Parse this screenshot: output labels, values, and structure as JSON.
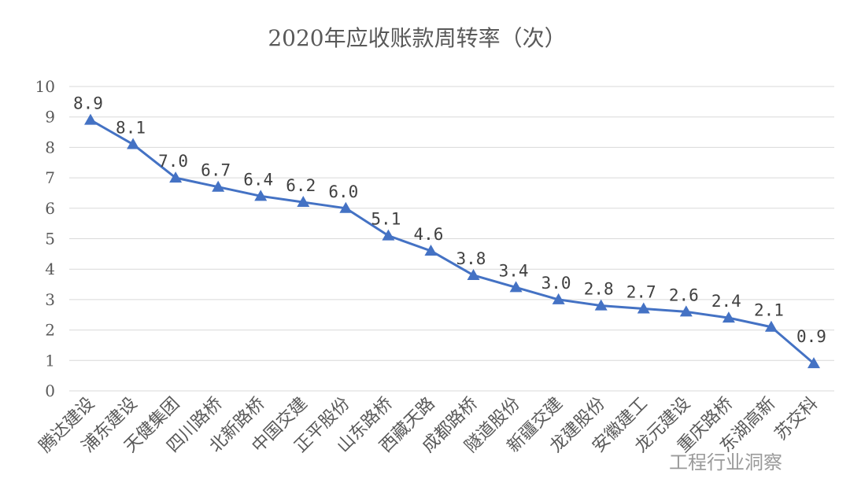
{
  "chart_data": {
    "type": "line",
    "title": "2020年应收账款周转率（次）",
    "categories": [
      "腾达建设",
      "浦东建设",
      "天健集团",
      "四川路桥",
      "北新路桥",
      "中国交建",
      "正平股份",
      "山东路桥",
      "西藏天路",
      "成都路桥",
      "隧道股份",
      "新疆交建",
      "龙建股份",
      "安徽建工",
      "龙元建设",
      "重庆路桥",
      "东湖高新",
      "苏交科"
    ],
    "values": [
      8.9,
      8.1,
      7.0,
      6.7,
      6.4,
      6.2,
      6.0,
      5.1,
      4.6,
      3.8,
      3.4,
      3.0,
      2.8,
      2.7,
      2.6,
      2.4,
      2.1,
      0.9
    ],
    "data_labels": [
      "8.9",
      "8.1",
      "7.0",
      "6.7",
      "6.4",
      "6.2",
      "6.0",
      "5.1",
      "4.6",
      "3.8",
      "3.4",
      "3.0",
      "2.8",
      "2.7",
      "2.6",
      "2.4",
      "2.1",
      "0.9"
    ],
    "yticks": [
      "0",
      "1",
      "2",
      "3",
      "4",
      "5",
      "6",
      "7",
      "8",
      "9",
      "10"
    ],
    "ylim": [
      0,
      10
    ],
    "grid": true,
    "marker": "triangle",
    "line_color": "#4472C4",
    "legend": "none"
  },
  "watermark": "工程行业洞察"
}
